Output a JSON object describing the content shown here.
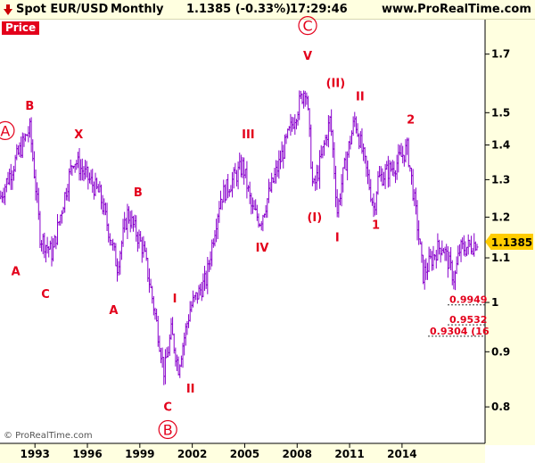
{
  "header": {
    "instrument": "Spot EUR/USD",
    "period": "Monthly",
    "quote": "1.1385 (-0.33%)",
    "time": "17:29:46",
    "site": "www.ProRealTime.com"
  },
  "panel_label": "Price",
  "copyright": "© ProRealTime.com",
  "colors": {
    "bars": "#8800cc",
    "labels": "#e3001b",
    "last_price_bg": "#ffcc00",
    "header_bg": "#ffffe0",
    "axis_bg": "#ffffe0"
  },
  "chart_data": {
    "type": "ohlc",
    "title": "Spot EUR/USD Monthly",
    "last_price": "1.1385",
    "ylim": [
      0.74,
      1.83
    ],
    "y_scale": "log",
    "y_ticks": [
      "1.7",
      "1.5",
      "1.4",
      "1.3",
      "1.2",
      "1.1",
      "1",
      "0.9",
      "0.8"
    ],
    "x_range": [
      1991.0,
      2018.75
    ],
    "x_ticks": [
      "1993",
      "1996",
      "1999",
      "2002",
      "2005",
      "2008",
      "2011",
      "2014"
    ],
    "series": [
      {
        "values_x": [
          1991.0,
          1992.7,
          1993.3,
          1994.0,
          1995.2,
          1996.7,
          1997.7,
          1998.3,
          1999.2,
          2000.4,
          2000.8,
          2001.2,
          2001.9,
          2002.8,
          2003.6,
          2004.9,
          2005.4,
          2005.9,
          2007.0,
          2008.5,
          2008.9,
          2009.1,
          2009.9,
          2010.3,
          2010.5,
          2011.3,
          2012.4,
          2012.6,
          2013.6,
          2014.3,
          2014.6,
          2015.2,
          2016.0,
          2016.3,
          2017.0,
          2017.3,
          2018.0,
          2018.3
        ],
        "values_y": [
          1.25,
          1.45,
          1.15,
          1.11,
          1.36,
          1.26,
          1.08,
          1.21,
          1.12,
          0.86,
          0.94,
          0.87,
          0.99,
          1.05,
          1.25,
          1.34,
          1.22,
          1.19,
          1.35,
          1.59,
          1.27,
          1.3,
          1.48,
          1.21,
          1.28,
          1.48,
          1.22,
          1.3,
          1.34,
          1.39,
          1.28,
          1.06,
          1.12,
          1.13,
          1.05,
          1.12,
          1.13,
          1.14
        ]
      }
    ],
    "wave_labels": [
      {
        "text": "A",
        "x": 1991.3,
        "y": 1.43,
        "circled": true
      },
      {
        "text": "B",
        "x": 1992.7,
        "y": 1.51,
        "circled": false
      },
      {
        "text": "X",
        "x": 1995.5,
        "y": 1.42,
        "circled": false
      },
      {
        "text": "A",
        "x": 1991.9,
        "y": 1.06,
        "circled": false
      },
      {
        "text": "C",
        "x": 1993.6,
        "y": 1.01,
        "circled": false
      },
      {
        "text": "B",
        "x": 1998.9,
        "y": 1.255,
        "circled": false
      },
      {
        "text": "A",
        "x": 1997.5,
        "y": 0.976,
        "circled": false
      },
      {
        "text": "I",
        "x": 2001.0,
        "y": 1.0,
        "circled": false
      },
      {
        "text": "C",
        "x": 2000.6,
        "y": 0.793,
        "circled": false
      },
      {
        "text": "II",
        "x": 2001.9,
        "y": 0.825,
        "circled": false
      },
      {
        "text": "B",
        "x": 2000.6,
        "y": 0.755,
        "circled": true
      },
      {
        "text": "III",
        "x": 2005.2,
        "y": 1.42,
        "circled": false
      },
      {
        "text": "IV",
        "x": 2006.0,
        "y": 1.115,
        "circled": false
      },
      {
        "text": "C",
        "x": 2008.6,
        "y": 1.79,
        "circled": true
      },
      {
        "text": "V",
        "x": 2008.6,
        "y": 1.68,
        "circled": false
      },
      {
        "text": "(II)",
        "x": 2010.2,
        "y": 1.585,
        "circled": false
      },
      {
        "text": "II",
        "x": 2011.6,
        "y": 1.54,
        "circled": false
      },
      {
        "text": "(I)",
        "x": 2009.0,
        "y": 1.19,
        "circled": false
      },
      {
        "text": "I",
        "x": 2010.3,
        "y": 1.14,
        "circled": false
      },
      {
        "text": "2",
        "x": 2014.5,
        "y": 1.465,
        "circled": false
      },
      {
        "text": "1",
        "x": 2012.5,
        "y": 1.17,
        "circled": false
      }
    ],
    "target_levels": [
      {
        "value": 0.9949,
        "label": "0.9949"
      },
      {
        "value": 0.9532,
        "label": "0.9532"
      },
      {
        "value": 0.9304,
        "label": "0.9304 (16"
      }
    ]
  }
}
